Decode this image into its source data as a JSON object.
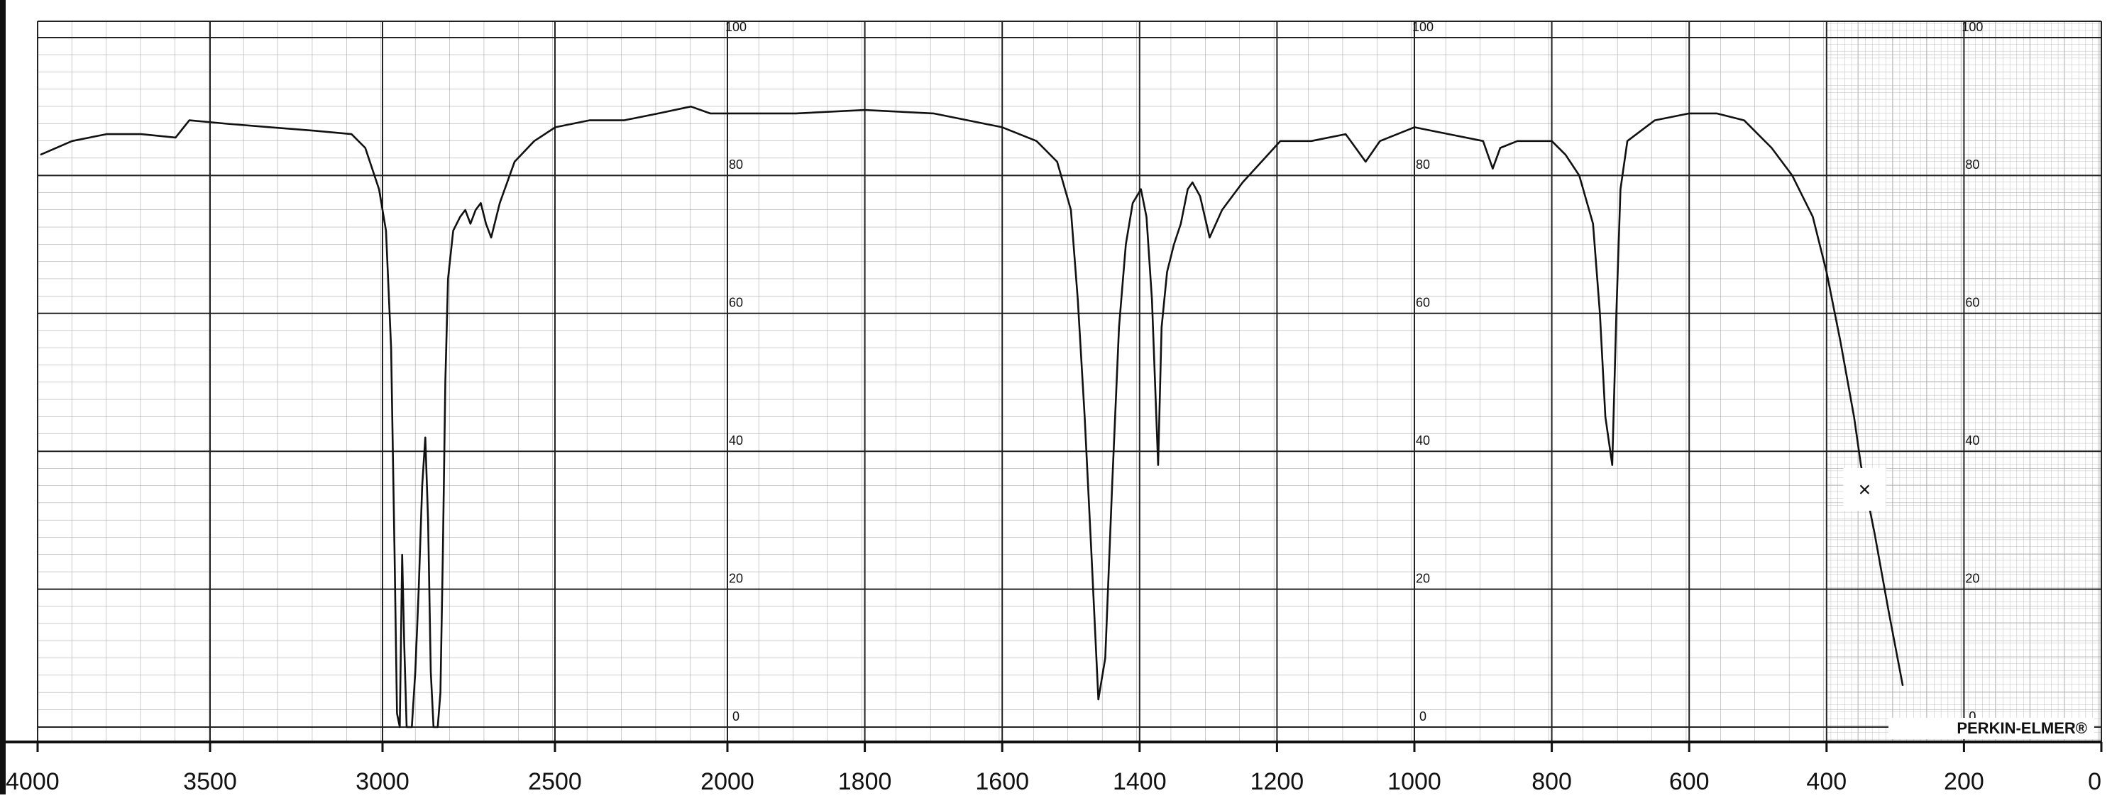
{
  "chart_data": {
    "type": "line",
    "color": "#111111",
    "xlim": [
      4000,
      0
    ],
    "ylim": [
      0,
      100
    ],
    "xticks": [
      4000,
      3500,
      3000,
      2500,
      2000,
      1800,
      1600,
      1400,
      1200,
      1000,
      800,
      600,
      400,
      200,
      0
    ],
    "yticks": [
      0,
      20,
      40,
      60,
      80,
      100
    ],
    "grid": true,
    "annotations": [
      "×",
      "PERKIN-ELMER®"
    ],
    "x": [
      3992,
      3900,
      3800,
      3700,
      3600,
      3560,
      3450,
      3325,
      3200,
      3090,
      3050,
      3010,
      2990,
      2975,
      2965,
      2958,
      2950,
      2943,
      2937,
      2930,
      2915,
      2905,
      2895,
      2885,
      2876,
      2868,
      2860,
      2852,
      2840,
      2832,
      2825,
      2818,
      2810,
      2795,
      2775,
      2760,
      2745,
      2730,
      2715,
      2700,
      2685,
      2660,
      2617,
      2560,
      2499,
      2400,
      2300,
      2200,
      2106,
      2050,
      2000,
      1900,
      1800,
      1700,
      1600,
      1550,
      1520,
      1500,
      1490,
      1480,
      1470,
      1460,
      1450,
      1440,
      1430,
      1420,
      1410,
      1398,
      1390,
      1382,
      1373,
      1368,
      1360,
      1350,
      1340,
      1330,
      1323,
      1312,
      1298,
      1280,
      1250,
      1195,
      1150,
      1100,
      1071,
      1050,
      1000,
      950,
      900,
      886,
      875,
      850,
      800,
      780,
      760,
      740,
      730,
      722,
      712,
      706,
      700,
      690,
      650,
      600,
      560,
      520,
      500,
      480,
      450,
      420,
      400,
      380,
      360,
      350,
      330,
      310,
      289
    ],
    "values": [
      83,
      85,
      86,
      86,
      85.5,
      88,
      87.5,
      87,
      86.5,
      86,
      84,
      78,
      72,
      55,
      25,
      2,
      0,
      25,
      12,
      0,
      0,
      8,
      20,
      35,
      42,
      30,
      8,
      0,
      0,
      5,
      25,
      50,
      65,
      72,
      74,
      75,
      73,
      75,
      76,
      73,
      71,
      76,
      82,
      85,
      87,
      88,
      88,
      89,
      90,
      89,
      89,
      89,
      89.5,
      89,
      87,
      85,
      82,
      75,
      62,
      45,
      25,
      4,
      10,
      35,
      58,
      70,
      76,
      78,
      74,
      62,
      38,
      58,
      66,
      70,
      73,
      78,
      79,
      77,
      71,
      75,
      79,
      85,
      85,
      86,
      82,
      85,
      87,
      86,
      85,
      81,
      84,
      85,
      85,
      83,
      80,
      73,
      60,
      45,
      38,
      60,
      78,
      85,
      88,
      89,
      89,
      88,
      86,
      84,
      80,
      74,
      66,
      56,
      45,
      38,
      28,
      17,
      6
    ]
  }
}
